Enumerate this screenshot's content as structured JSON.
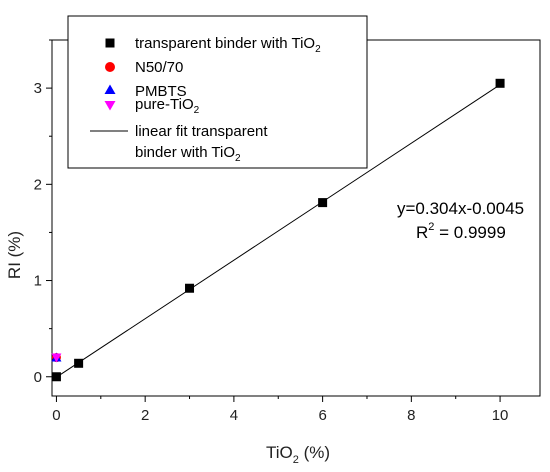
{
  "chart_data": {
    "type": "scatter",
    "xlabel": {
      "main": "TiO",
      "sub": "2",
      "after": " (%)"
    },
    "ylabel": "RI (%)",
    "xlim": [
      -0.1,
      10.9
    ],
    "ylim": [
      -0.2,
      3.5
    ],
    "xticks": [
      0,
      2,
      4,
      6,
      8,
      10
    ],
    "yticks": [
      0,
      1,
      2,
      3
    ],
    "x_tick_labels": [
      "0",
      "2",
      "4",
      "6",
      "8",
      "10"
    ],
    "y_tick_labels": [
      "0",
      "1",
      "2",
      "3"
    ],
    "legend_placement": "top-left",
    "series": [
      {
        "name": "transparent binder with TiO",
        "name_sub": "2",
        "marker": "square",
        "color": "#000000",
        "x": [
          0,
          0.5,
          3,
          6,
          10
        ],
        "y": [
          0.0,
          0.14,
          0.92,
          1.81,
          3.05
        ]
      },
      {
        "name": "N50/70",
        "marker": "circle",
        "color": "#ff0000",
        "x": [
          0
        ],
        "y": [
          0.2
        ]
      },
      {
        "name": "PMBTS",
        "marker": "triangle-up",
        "color": "#0000ff",
        "x": [
          0
        ],
        "y": [
          0.2
        ]
      },
      {
        "name": "pure-TiO",
        "name_sub": "2",
        "marker": "triangle-down",
        "color": "#ff00ff",
        "x": [
          0
        ],
        "y": [
          0.2
        ]
      }
    ],
    "fit": {
      "name_line1": "linear fit transparent",
      "name_line2": "binder with TiO",
      "name_line2_sub": "2",
      "color": "#000000",
      "slope": 0.304,
      "intercept": -0.0045,
      "x_range": [
        0,
        10
      ],
      "equation": "y=0.304x-0.0045",
      "r2_prefix": "R",
      "r2_sup": "2",
      "r2_suffix": " = 0.9999"
    }
  }
}
